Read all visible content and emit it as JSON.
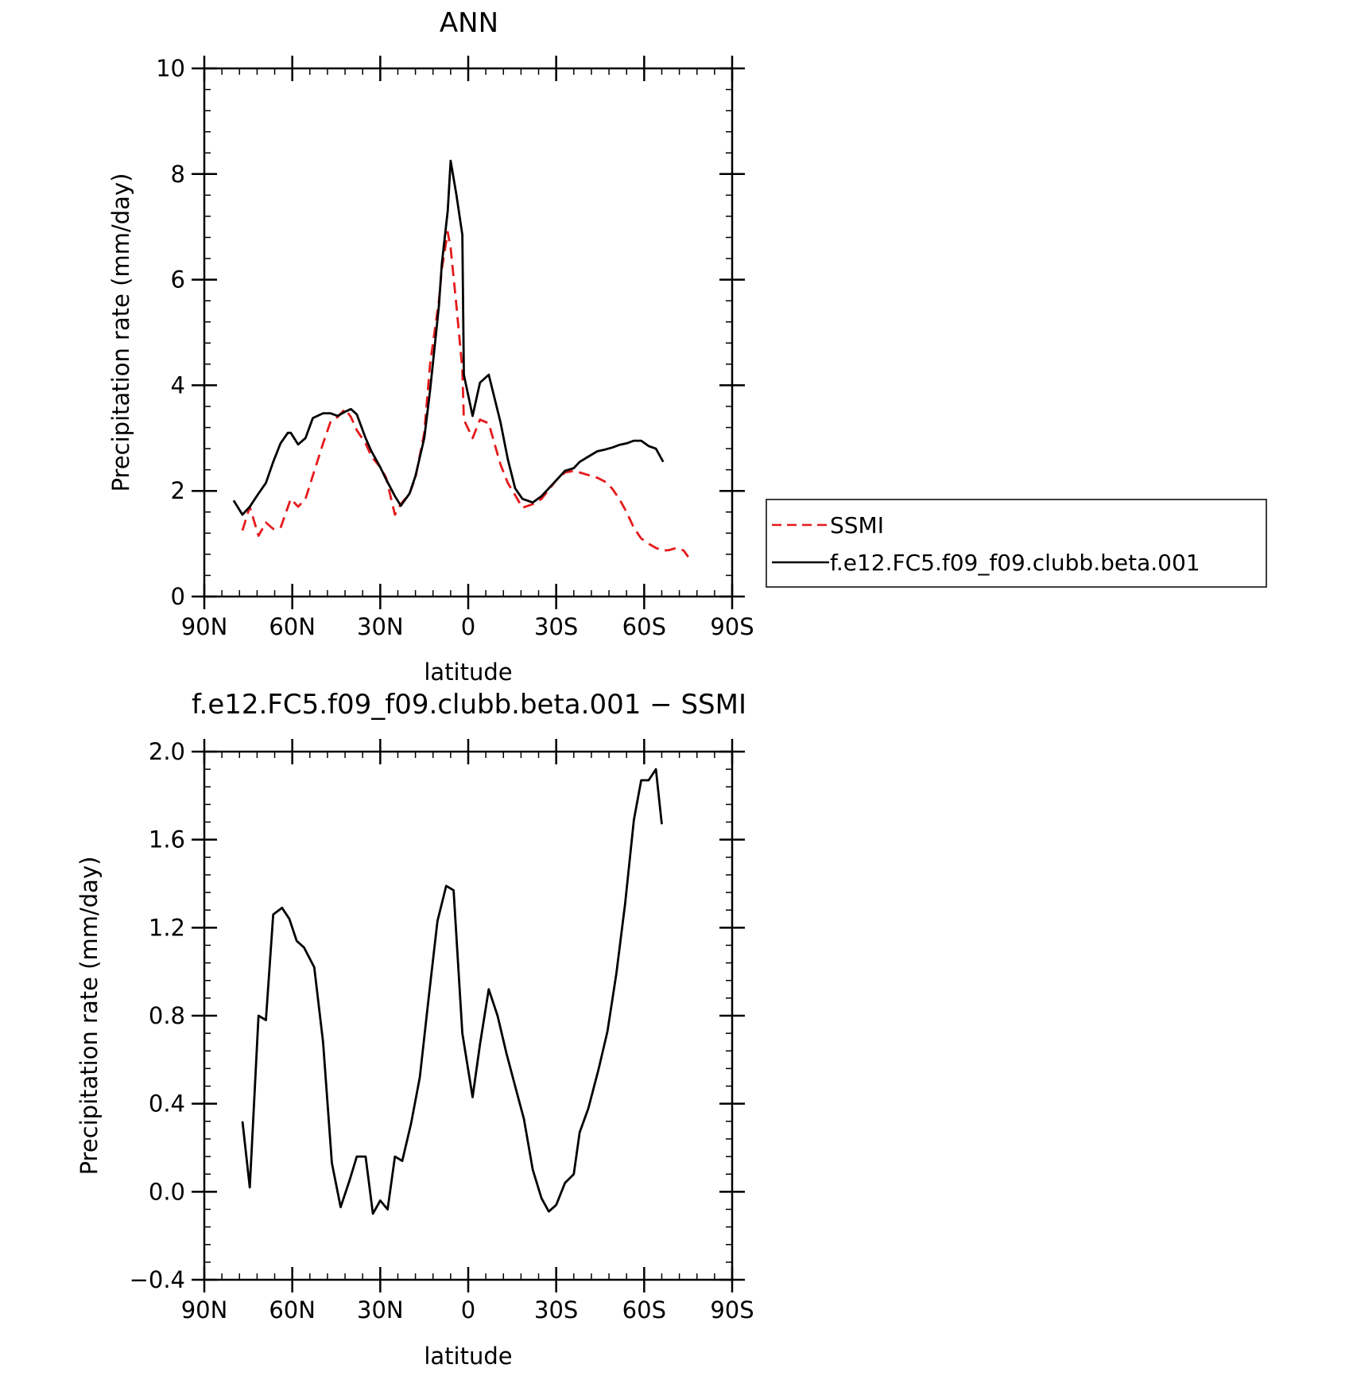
{
  "chart_data": [
    {
      "type": "line",
      "title": "ANN",
      "xlabel": "latitude",
      "ylabel": "Precipitation rate (mm/day)",
      "xlim": [
        -90,
        90
      ],
      "ylim": [
        0,
        10
      ],
      "x_ticks": [
        {
          "value": -90,
          "label": "90N"
        },
        {
          "value": -60,
          "label": "60N"
        },
        {
          "value": -30,
          "label": "30N"
        },
        {
          "value": 0,
          "label": "0"
        },
        {
          "value": 30,
          "label": "30S"
        },
        {
          "value": 60,
          "label": "60S"
        },
        {
          "value": 90,
          "label": "90S"
        }
      ],
      "y_ticks": [
        {
          "value": 0,
          "label": "0"
        },
        {
          "value": 2,
          "label": "2"
        },
        {
          "value": 4,
          "label": "4"
        },
        {
          "value": 6,
          "label": "6"
        },
        {
          "value": 8,
          "label": "8"
        },
        {
          "value": 10,
          "label": "10"
        }
      ],
      "legend": {
        "placement": "right",
        "entries": [
          {
            "name": "SSMI",
            "color": "#e41a1c",
            "dash": true
          },
          {
            "name": "f.e12.FC5.f09_f09.clubb.beta.001",
            "color": "#000000",
            "dash": false
          }
        ]
      },
      "series": [
        {
          "name": "SSMI",
          "color": "#e41a1c",
          "dash": true,
          "x": [
            -77,
            -74.5,
            -71.5,
            -69,
            -66.5,
            -64,
            -60.5,
            -58,
            -55.5,
            -49.5,
            -47,
            -44.5,
            -42,
            -40,
            -38,
            -35,
            -33,
            -30,
            -28,
            -25,
            -23,
            -20,
            -18,
            -15,
            -13,
            -10,
            -9,
            -7,
            -6,
            -4,
            -2,
            -1.5,
            1.5,
            4,
            7,
            11,
            13.5,
            16,
            18.5,
            22,
            25,
            30,
            33,
            36,
            38,
            41,
            44,
            46.5,
            49,
            51.5,
            54,
            56.5,
            59,
            61.5,
            64,
            66.5,
            68.5,
            71,
            73.5,
            75
          ],
          "y": [
            1.25,
            1.7,
            1.15,
            1.4,
            1.28,
            1.3,
            1.85,
            1.7,
            1.85,
            2.9,
            3.3,
            3.4,
            3.55,
            3.4,
            3.15,
            2.9,
            2.65,
            2.45,
            2.25,
            1.55,
            1.75,
            1.95,
            2.25,
            3.1,
            4.4,
            5.6,
            6.2,
            6.9,
            6.6,
            5.5,
            4.3,
            3.35,
            3.0,
            3.35,
            3.28,
            2.5,
            2.15,
            1.92,
            1.68,
            1.75,
            1.85,
            2.2,
            2.35,
            2.38,
            2.35,
            2.3,
            2.25,
            2.18,
            2.05,
            1.85,
            1.6,
            1.3,
            1.1,
            1.0,
            0.92,
            0.87,
            0.88,
            0.92,
            0.87,
            0.75
          ]
        },
        {
          "name": "f.e12.FC5.f09_f09.clubb.beta.001",
          "color": "#000000",
          "dash": false,
          "x": [
            -80,
            -77,
            -74.5,
            -71.5,
            -69,
            -66.5,
            -64,
            -61.5,
            -60.5,
            -58,
            -55.5,
            -53,
            -49.5,
            -47,
            -44.5,
            -42,
            -40,
            -38,
            -35,
            -33,
            -30,
            -28,
            -25,
            -23,
            -20,
            -18,
            -15,
            -13,
            -10,
            -9,
            -7,
            -6,
            -4,
            -2,
            -1.5,
            1.5,
            4,
            7,
            11,
            13.5,
            16,
            18.5,
            22,
            25,
            30,
            33,
            36,
            38,
            41,
            44,
            46.5,
            49,
            51.5,
            54,
            56.5,
            59,
            61.5,
            64,
            66.5
          ],
          "y": [
            1.82,
            1.55,
            1.7,
            1.95,
            2.15,
            2.55,
            2.9,
            3.1,
            3.1,
            2.88,
            3.0,
            3.38,
            3.47,
            3.47,
            3.42,
            3.5,
            3.55,
            3.45,
            3.0,
            2.75,
            2.45,
            2.22,
            1.9,
            1.72,
            1.95,
            2.28,
            3.0,
            3.9,
            5.5,
            6.3,
            7.3,
            8.25,
            7.6,
            6.85,
            4.2,
            3.42,
            4.05,
            4.2,
            3.3,
            2.6,
            2.05,
            1.85,
            1.78,
            1.9,
            2.2,
            2.38,
            2.43,
            2.55,
            2.65,
            2.75,
            2.78,
            2.82,
            2.87,
            2.9,
            2.95,
            2.95,
            2.85,
            2.8,
            2.55
          ]
        }
      ]
    },
    {
      "type": "line",
      "title": "f.e12.FC5.f09_f09.clubb.beta.001 − SSMI",
      "xlabel": "latitude",
      "ylabel": "Precipitation rate (mm/day)",
      "xlim": [
        -90,
        90
      ],
      "ylim": [
        -0.4,
        2.0
      ],
      "x_ticks": [
        {
          "value": -90,
          "label": "90N"
        },
        {
          "value": -60,
          "label": "60N"
        },
        {
          "value": -30,
          "label": "30N"
        },
        {
          "value": 0,
          "label": "0"
        },
        {
          "value": 30,
          "label": "30S"
        },
        {
          "value": 60,
          "label": "60S"
        },
        {
          "value": 90,
          "label": "90S"
        }
      ],
      "y_ticks": [
        {
          "value": -0.4,
          "label": "−0.4"
        },
        {
          "value": 0.0,
          "label": "0.0"
        },
        {
          "value": 0.4,
          "label": "0.4"
        },
        {
          "value": 0.8,
          "label": "0.8"
        },
        {
          "value": 1.2,
          "label": "1.2"
        },
        {
          "value": 1.6,
          "label": "1.6"
        },
        {
          "value": 2.0,
          "label": "2.0"
        }
      ],
      "series": [
        {
          "color": "#000000",
          "dash": false,
          "x": [
            -77,
            -74.5,
            -71.5,
            -69,
            -66.5,
            -63.5,
            -61,
            -58.5,
            -56,
            -52.5,
            -49.5,
            -46.5,
            -43.5,
            -40.5,
            -38,
            -35,
            -32.5,
            -30,
            -27.5,
            -25,
            -22.5,
            -19.5,
            -16.5,
            -13.5,
            -10.5,
            -7.5,
            -5,
            -2,
            1.5,
            4,
            7,
            10,
            13,
            16,
            19,
            22,
            25,
            27.5,
            30,
            33,
            36,
            38,
            41,
            44.5,
            47.5,
            50.5,
            53.5,
            56.5,
            59,
            61.5,
            64,
            66
          ],
          "y": [
            0.32,
            0.02,
            0.8,
            0.78,
            1.26,
            1.29,
            1.24,
            1.14,
            1.11,
            1.02,
            0.68,
            0.13,
            -0.07,
            0.05,
            0.16,
            0.16,
            -0.1,
            -0.04,
            -0.08,
            0.16,
            0.14,
            0.31,
            0.52,
            0.88,
            1.23,
            1.39,
            1.37,
            0.72,
            0.43,
            0.67,
            0.92,
            0.8,
            0.63,
            0.48,
            0.33,
            0.1,
            -0.03,
            -0.09,
            -0.06,
            0.04,
            0.08,
            0.27,
            0.38,
            0.56,
            0.73,
            0.99,
            1.31,
            1.69,
            1.87,
            1.87,
            1.92,
            1.67
          ]
        }
      ]
    }
  ]
}
